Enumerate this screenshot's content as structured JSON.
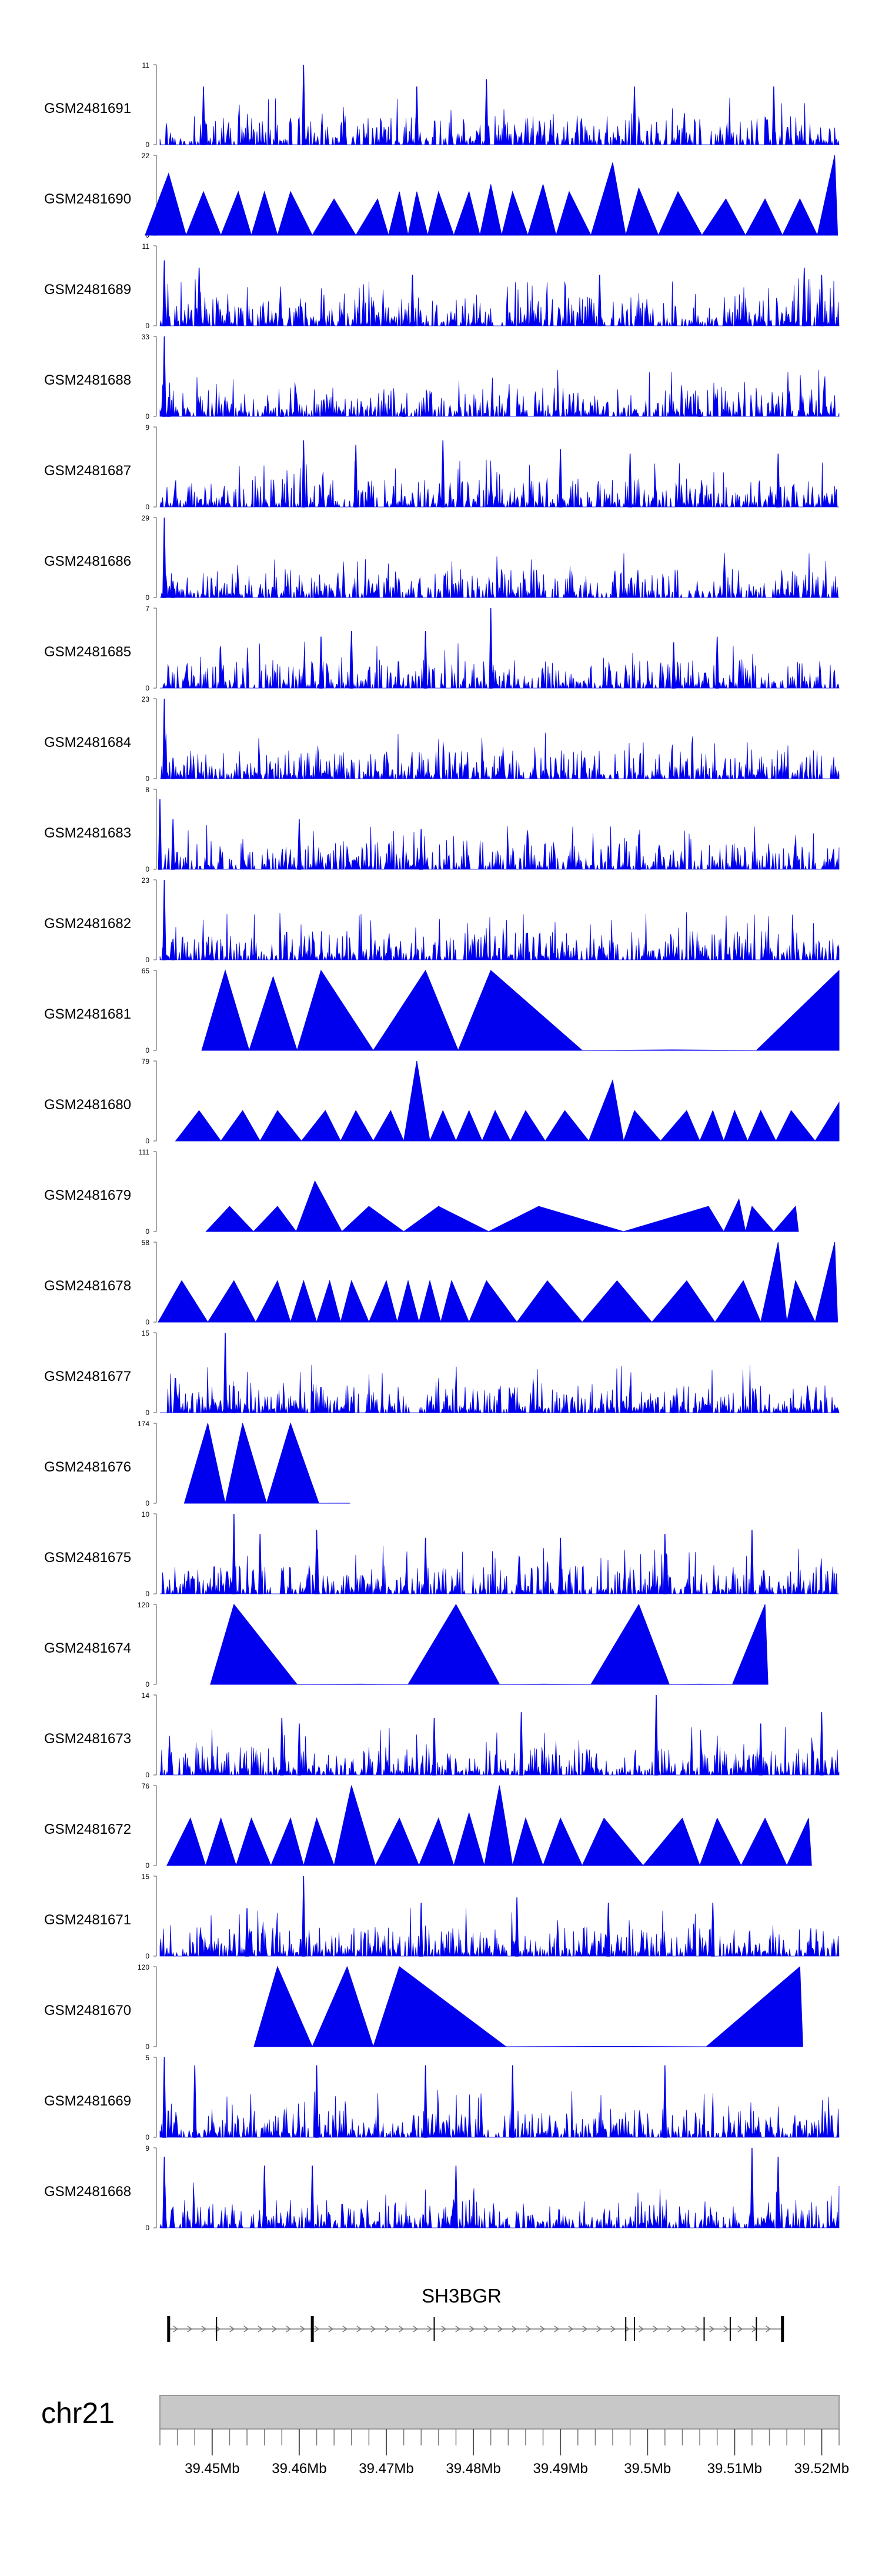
{
  "chart_data": {
    "type": "area",
    "track_color": "#0000ee",
    "chrom_label": "chr21",
    "gene": {
      "name": "SH3BGR",
      "start_mb": 39.445,
      "end_mb": 39.5155,
      "exon_positions_mb": [
        39.445,
        39.4505,
        39.4615,
        39.4755,
        39.4975,
        39.4985,
        39.5065,
        39.5095,
        39.5125,
        39.5155
      ]
    },
    "xaxis": {
      "range_mb": [
        39.444,
        39.522
      ],
      "tick_labels": [
        "39.45Mb",
        "39.46Mb",
        "39.47Mb",
        "39.48Mb",
        "39.49Mb",
        "39.5Mb",
        "39.51Mb",
        "39.52Mb"
      ],
      "tick_values_mb": [
        39.45,
        39.46,
        39.47,
        39.48,
        39.49,
        39.5,
        39.51,
        39.52
      ],
      "minor_tick_step_mb": 0.002
    },
    "tracks": [
      {
        "name": "GSM2481691",
        "ymax": "11",
        "style": "dense",
        "peaks": [
          [
            39.4605,
            11
          ],
          [
            39.449,
            8
          ],
          [
            39.4735,
            8
          ],
          [
            39.4815,
            9
          ],
          [
            39.4985,
            8
          ],
          [
            39.5145,
            8
          ]
        ]
      },
      {
        "name": "GSM2481690",
        "ymax": "22",
        "style": "triangles",
        "apexes": [
          [
            39.445,
            17
          ],
          [
            39.449,
            12
          ],
          [
            39.453,
            12
          ],
          [
            39.456,
            12
          ],
          [
            39.459,
            12
          ],
          [
            39.464,
            10
          ],
          [
            39.469,
            10
          ],
          [
            39.4715,
            12
          ],
          [
            39.4735,
            12
          ],
          [
            39.476,
            12
          ],
          [
            39.4795,
            12
          ],
          [
            39.482,
            14
          ],
          [
            39.4845,
            12
          ],
          [
            39.488,
            14
          ],
          [
            39.491,
            12
          ],
          [
            39.496,
            20
          ],
          [
            39.499,
            13
          ],
          [
            39.5035,
            12
          ],
          [
            39.509,
            10
          ],
          [
            39.5135,
            10
          ],
          [
            39.5175,
            10
          ],
          [
            39.5215,
            22
          ]
        ]
      },
      {
        "name": "GSM2481689",
        "ymax": "11",
        "style": "dense",
        "peaks": [
          [
            39.4445,
            9
          ],
          [
            39.4485,
            8
          ],
          [
            39.473,
            7
          ],
          [
            39.4945,
            7
          ],
          [
            39.518,
            8
          ],
          [
            39.52,
            7
          ]
        ]
      },
      {
        "name": "GSM2481688",
        "ymax": "33",
        "style": "dense",
        "peaks": [
          [
            39.4445,
            33
          ],
          [
            39.445,
            8
          ],
          [
            39.458,
            3
          ],
          [
            39.472,
            3
          ],
          [
            39.506,
            3
          ]
        ]
      },
      {
        "name": "GSM2481687",
        "ymax": "9",
        "style": "dense",
        "peaks": [
          [
            39.4605,
            7.5
          ],
          [
            39.4665,
            7
          ],
          [
            39.4765,
            7.5
          ],
          [
            39.49,
            6.5
          ],
          [
            39.498,
            6
          ],
          [
            39.515,
            6
          ]
        ]
      },
      {
        "name": "GSM2481686",
        "ymax": "29",
        "style": "dense",
        "peaks": [
          [
            39.4445,
            29
          ],
          [
            39.4455,
            6
          ],
          [
            39.462,
            3
          ],
          [
            39.476,
            3
          ],
          [
            39.515,
            3
          ]
        ]
      },
      {
        "name": "GSM2481685",
        "ymax": "7",
        "style": "dense",
        "peaks": [
          [
            39.482,
            7
          ],
          [
            39.466,
            5
          ],
          [
            39.4745,
            5
          ],
          [
            39.4625,
            4.5
          ],
          [
            39.508,
            4.5
          ],
          [
            39.503,
            4
          ]
        ]
      },
      {
        "name": "GSM2481684",
        "ymax": "23",
        "style": "dense",
        "peaks": [
          [
            39.4445,
            23
          ],
          [
            39.4455,
            6
          ],
          [
            39.46,
            3
          ],
          [
            39.48,
            3
          ]
        ]
      },
      {
        "name": "GSM2481683",
        "ymax": "8",
        "style": "dense",
        "peaks": [
          [
            39.444,
            7
          ],
          [
            39.4455,
            5
          ],
          [
            39.46,
            5
          ],
          [
            39.474,
            4
          ],
          [
            39.499,
            3.5
          ]
        ]
      },
      {
        "name": "GSM2481682",
        "ymax": "23",
        "style": "dense",
        "peaks": [
          [
            39.4445,
            23
          ],
          [
            39.4455,
            6
          ],
          [
            39.45,
            3
          ],
          [
            39.47,
            2
          ]
        ]
      },
      {
        "name": "GSM2481681",
        "ymax": "65",
        "style": "triangles",
        "apexes": [
          [
            39.4515,
            65
          ],
          [
            39.457,
            60
          ],
          [
            39.4625,
            65
          ],
          [
            39.4745,
            65
          ],
          [
            39.482,
            65
          ],
          [
            39.503,
            0.5
          ],
          [
            39.522,
            65
          ]
        ]
      },
      {
        "name": "GSM2481680",
        "ymax": "79",
        "style": "triangles",
        "apexes": [
          [
            39.4485,
            30
          ],
          [
            39.4535,
            30
          ],
          [
            39.4575,
            30
          ],
          [
            39.463,
            30
          ],
          [
            39.4665,
            30
          ],
          [
            39.4705,
            30
          ],
          [
            39.4735,
            79
          ],
          [
            39.4765,
            30
          ],
          [
            39.4795,
            30
          ],
          [
            39.4825,
            30
          ],
          [
            39.486,
            30
          ],
          [
            39.4905,
            30
          ],
          [
            39.496,
            60
          ],
          [
            39.4985,
            30
          ],
          [
            39.5045,
            30
          ],
          [
            39.5075,
            30
          ],
          [
            39.51,
            30
          ],
          [
            39.513,
            30
          ],
          [
            39.5165,
            30
          ],
          [
            39.522,
            38
          ]
        ]
      },
      {
        "name": "GSM2481679",
        "ymax": "111",
        "style": "triangles",
        "apexes": [
          [
            39.452,
            35
          ],
          [
            39.4575,
            35
          ],
          [
            39.4618,
            70
          ],
          [
            39.468,
            35
          ],
          [
            39.476,
            35
          ],
          [
            39.4875,
            35
          ],
          [
            39.507,
            35
          ],
          [
            39.5105,
            45
          ],
          [
            39.512,
            35
          ],
          [
            39.517,
            35
          ]
        ]
      },
      {
        "name": "GSM2481678",
        "ymax": "58",
        "style": "triangles",
        "apexes": [
          [
            39.4465,
            30
          ],
          [
            39.4525,
            30
          ],
          [
            39.4575,
            30
          ],
          [
            39.4605,
            30
          ],
          [
            39.4635,
            30
          ],
          [
            39.466,
            30
          ],
          [
            39.47,
            30
          ],
          [
            39.4725,
            30
          ],
          [
            39.475,
            30
          ],
          [
            39.4775,
            30
          ],
          [
            39.4815,
            30
          ],
          [
            39.4885,
            30
          ],
          [
            39.4965,
            30
          ],
          [
            39.5045,
            30
          ],
          [
            39.511,
            30
          ],
          [
            39.515,
            58
          ],
          [
            39.517,
            30
          ],
          [
            39.5215,
            58
          ]
        ]
      },
      {
        "name": "GSM2481677",
        "ymax": "15",
        "style": "dense",
        "peaks": [
          [
            39.4515,
            15
          ],
          [
            39.4525,
            5
          ],
          [
            39.4615,
            4
          ],
          [
            39.466,
            3
          ],
          [
            39.483,
            4
          ],
          [
            39.498,
            5
          ],
          [
            39.503,
            3
          ]
        ]
      },
      {
        "name": "GSM2481676",
        "ymax": "174",
        "style": "triangles",
        "apexes": [
          [
            39.4495,
            174
          ],
          [
            39.4535,
            174
          ],
          [
            39.459,
            174
          ],
          [
            39.4655,
            0.5
          ]
        ]
      },
      {
        "name": "GSM2481675",
        "ymax": "10",
        "style": "dense",
        "peaks": [
          [
            39.4525,
            10
          ],
          [
            39.4555,
            7.5
          ],
          [
            39.462,
            8
          ],
          [
            39.4745,
            7
          ],
          [
            39.49,
            7
          ],
          [
            39.502,
            7.5
          ],
          [
            39.512,
            8
          ]
        ]
      },
      {
        "name": "GSM2481674",
        "ymax": "120",
        "style": "triangles",
        "apexes": [
          [
            39.4525,
            120
          ],
          [
            39.467,
            0.5
          ],
          [
            39.478,
            120
          ],
          [
            39.488,
            0.5
          ],
          [
            39.499,
            120
          ],
          [
            39.506,
            0.5
          ],
          [
            39.5135,
            120
          ]
        ]
      },
      {
        "name": "GSM2481673",
        "ymax": "14",
        "style": "dense",
        "peaks": [
          [
            39.458,
            10
          ],
          [
            39.46,
            9
          ],
          [
            39.4755,
            10
          ],
          [
            39.4855,
            11
          ],
          [
            39.501,
            14
          ],
          [
            39.513,
            9
          ],
          [
            39.52,
            11
          ]
        ]
      },
      {
        "name": "GSM2481672",
        "ymax": "76",
        "style": "triangles",
        "apexes": [
          [
            39.4475,
            45
          ],
          [
            39.451,
            45
          ],
          [
            39.4545,
            45
          ],
          [
            39.459,
            45
          ],
          [
            39.462,
            45
          ],
          [
            39.466,
            76
          ],
          [
            39.4715,
            45
          ],
          [
            39.476,
            45
          ],
          [
            39.4795,
            50
          ],
          [
            39.483,
            76
          ],
          [
            39.486,
            45
          ],
          [
            39.49,
            45
          ],
          [
            39.495,
            45
          ],
          [
            39.504,
            45
          ],
          [
            39.508,
            45
          ],
          [
            39.5135,
            45
          ],
          [
            39.5185,
            45
          ]
        ]
      },
      {
        "name": "GSM2481671",
        "ymax": "15",
        "style": "dense",
        "peaks": [
          [
            39.4605,
            15
          ],
          [
            39.454,
            9
          ],
          [
            39.474,
            10
          ],
          [
            39.485,
            11
          ],
          [
            39.4955,
            10
          ],
          [
            39.5075,
            10
          ]
        ]
      },
      {
        "name": "GSM2481670",
        "ymax": "120",
        "style": "triangles",
        "apexes": [
          [
            39.4575,
            120
          ],
          [
            39.4655,
            120
          ],
          [
            39.4715,
            120
          ],
          [
            39.496,
            0.5
          ],
          [
            39.5175,
            120
          ]
        ]
      },
      {
        "name": "GSM2481669",
        "ymax": "5",
        "style": "dense",
        "peaks": [
          [
            39.4445,
            5
          ],
          [
            39.448,
            4.5
          ],
          [
            39.462,
            4.5
          ],
          [
            39.4745,
            4.5
          ],
          [
            39.4845,
            4.5
          ],
          [
            39.502,
            4.5
          ]
        ]
      },
      {
        "name": "GSM2481668",
        "ymax": "9",
        "style": "dense",
        "peaks": [
          [
            39.4445,
            8
          ],
          [
            39.456,
            7
          ],
          [
            39.4615,
            7
          ],
          [
            39.478,
            7
          ],
          [
            39.512,
            9
          ],
          [
            39.515,
            8
          ]
        ]
      }
    ]
  }
}
